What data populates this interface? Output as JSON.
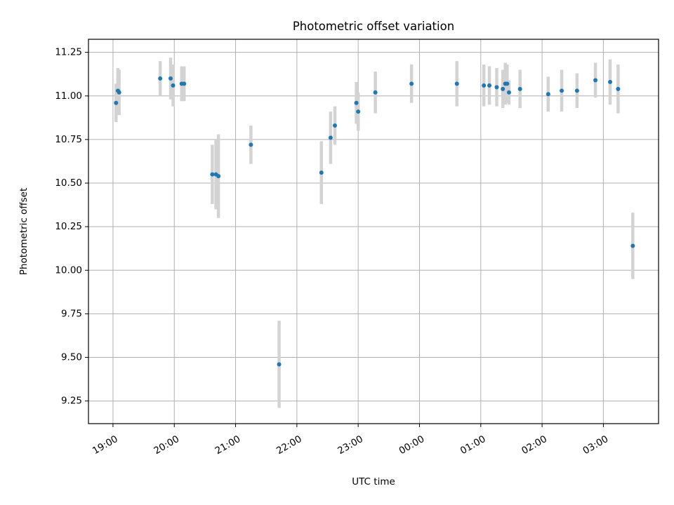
{
  "chart_data": {
    "type": "scatter",
    "title": "Photometric offset variation",
    "xlabel": "UTC time",
    "ylabel": "Photometric offset",
    "ylim": [
      9.12,
      11.325
    ],
    "xlim_hours": [
      18.6,
      27.9
    ],
    "grid": true,
    "x_ticks": [
      {
        "hour": 19,
        "label": "19:00"
      },
      {
        "hour": 20,
        "label": "20:00"
      },
      {
        "hour": 21,
        "label": "21:00"
      },
      {
        "hour": 22,
        "label": "22:00"
      },
      {
        "hour": 23,
        "label": "23:00"
      },
      {
        "hour": 24,
        "label": "00:00"
      },
      {
        "hour": 25,
        "label": "01:00"
      },
      {
        "hour": 26,
        "label": "02:00"
      },
      {
        "hour": 27,
        "label": "03:00"
      }
    ],
    "y_ticks": [
      {
        "value": 9.25,
        "label": "9.25"
      },
      {
        "value": 9.5,
        "label": "9.50"
      },
      {
        "value": 9.75,
        "label": "9.75"
      },
      {
        "value": 10.0,
        "label": "10.00"
      },
      {
        "value": 10.25,
        "label": "10.25"
      },
      {
        "value": 10.5,
        "label": "10.50"
      },
      {
        "value": 10.75,
        "label": "10.75"
      },
      {
        "value": 11.0,
        "label": "11.00"
      },
      {
        "value": 11.25,
        "label": "11.25"
      }
    ],
    "colors": {
      "marker": "#1f77b4",
      "errorbar": "#d3d3d3",
      "grid": "#b0b0b0"
    },
    "points": [
      {
        "time": "19:03",
        "hour": 19.05,
        "y": 10.96,
        "err": 0.11
      },
      {
        "time": "19:05",
        "hour": 19.08,
        "y": 11.03,
        "err": 0.13
      },
      {
        "time": "19:06",
        "hour": 19.1,
        "y": 11.02,
        "err": 0.13
      },
      {
        "time": "19:46",
        "hour": 19.77,
        "y": 11.1,
        "err": 0.1
      },
      {
        "time": "19:56",
        "hour": 19.94,
        "y": 11.1,
        "err": 0.12
      },
      {
        "time": "19:59",
        "hour": 19.98,
        "y": 11.06,
        "err": 0.12
      },
      {
        "time": "20:07",
        "hour": 20.12,
        "y": 11.07,
        "err": 0.1
      },
      {
        "time": "20:09",
        "hour": 20.16,
        "y": 11.07,
        "err": 0.1
      },
      {
        "time": "20:37",
        "hour": 20.62,
        "y": 10.55,
        "err": 0.17
      },
      {
        "time": "20:41",
        "hour": 20.68,
        "y": 10.55,
        "err": 0.2
      },
      {
        "time": "20:43",
        "hour": 20.72,
        "y": 10.54,
        "err": 0.24
      },
      {
        "time": "21:15",
        "hour": 21.25,
        "y": 10.72,
        "err": 0.11
      },
      {
        "time": "21:42",
        "hour": 21.71,
        "y": 9.46,
        "err": 0.25
      },
      {
        "time": "22:24",
        "hour": 22.4,
        "y": 10.56,
        "err": 0.18
      },
      {
        "time": "22:33",
        "hour": 22.55,
        "y": 10.76,
        "err": 0.15
      },
      {
        "time": "22:37",
        "hour": 22.62,
        "y": 10.83,
        "err": 0.11
      },
      {
        "time": "22:58",
        "hour": 22.97,
        "y": 10.96,
        "err": 0.12
      },
      {
        "time": "23:00",
        "hour": 23.0,
        "y": 10.91,
        "err": 0.11
      },
      {
        "time": "23:17",
        "hour": 23.28,
        "y": 11.02,
        "err": 0.12
      },
      {
        "time": "23:52",
        "hour": 23.87,
        "y": 11.07,
        "err": 0.11
      },
      {
        "time": "00:37",
        "hour": 24.61,
        "y": 11.07,
        "err": 0.13
      },
      {
        "time": "01:03",
        "hour": 25.05,
        "y": 11.06,
        "err": 0.12
      },
      {
        "time": "01:08",
        "hour": 25.14,
        "y": 11.06,
        "err": 0.11
      },
      {
        "time": "01:15",
        "hour": 25.26,
        "y": 11.05,
        "err": 0.11
      },
      {
        "time": "01:21",
        "hour": 25.36,
        "y": 11.04,
        "err": 0.11
      },
      {
        "time": "01:24",
        "hour": 25.4,
        "y": 11.07,
        "err": 0.12
      },
      {
        "time": "01:26",
        "hour": 25.43,
        "y": 11.07,
        "err": 0.11
      },
      {
        "time": "01:28",
        "hour": 25.46,
        "y": 11.02,
        "err": 0.07
      },
      {
        "time": "01:38",
        "hour": 25.64,
        "y": 11.04,
        "err": 0.11
      },
      {
        "time": "02:06",
        "hour": 26.1,
        "y": 11.01,
        "err": 0.1
      },
      {
        "time": "02:19",
        "hour": 26.32,
        "y": 11.03,
        "err": 0.12
      },
      {
        "time": "02:34",
        "hour": 26.57,
        "y": 11.03,
        "err": 0.1
      },
      {
        "time": "02:52",
        "hour": 26.87,
        "y": 11.09,
        "err": 0.1
      },
      {
        "time": "03:06",
        "hour": 27.11,
        "y": 11.08,
        "err": 0.13
      },
      {
        "time": "03:14",
        "hour": 27.24,
        "y": 11.04,
        "err": 0.14
      },
      {
        "time": "03:29",
        "hour": 27.48,
        "y": 10.14,
        "err": 0.19
      }
    ]
  }
}
